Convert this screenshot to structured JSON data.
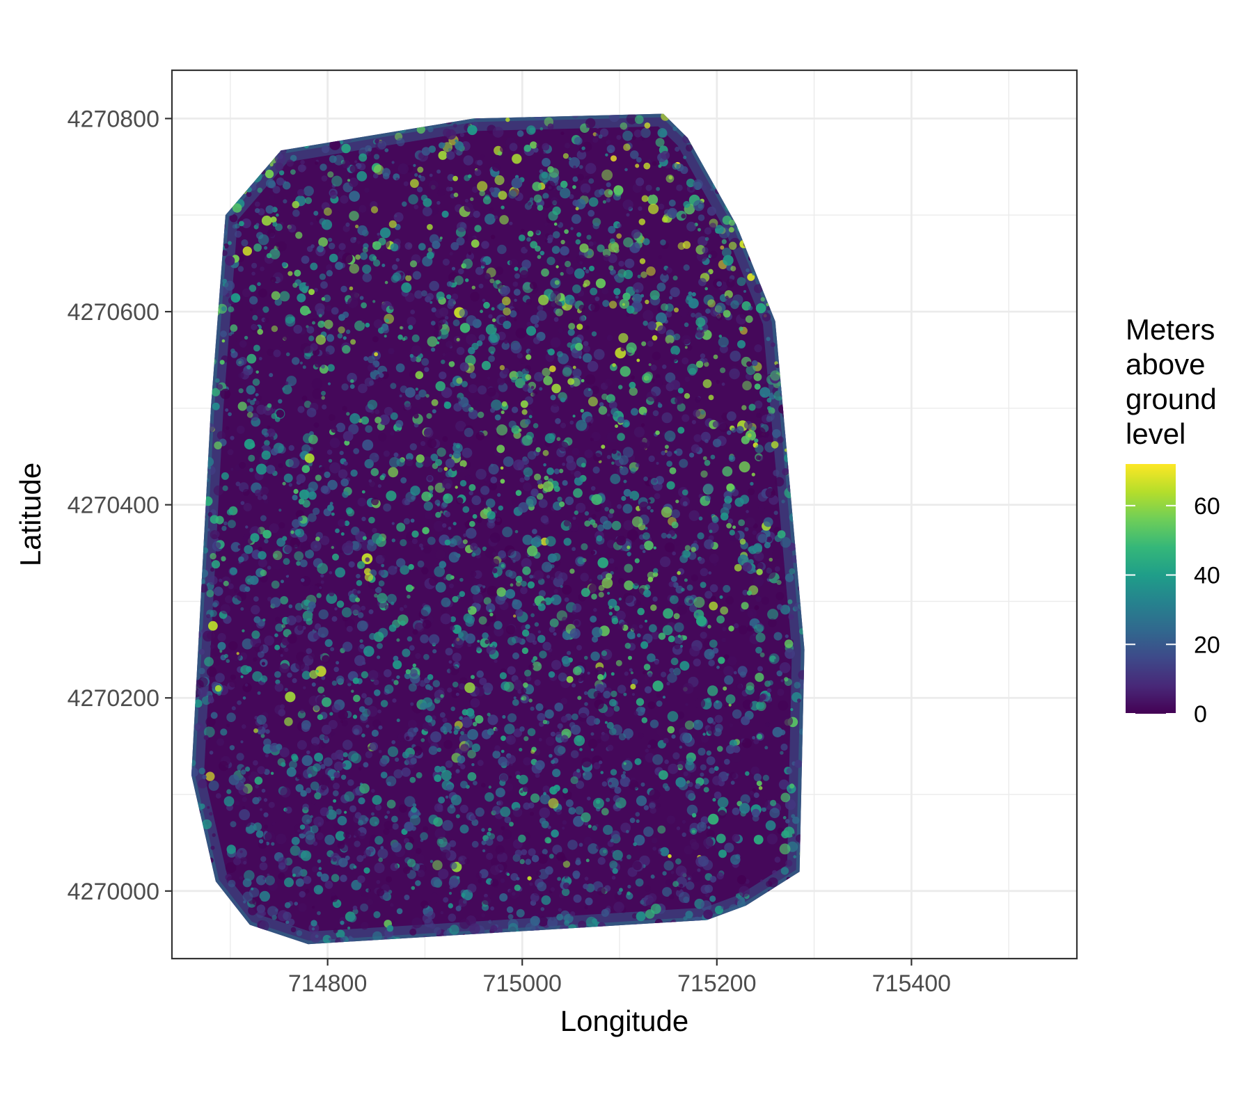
{
  "chart_data": {
    "type": "heatmap",
    "title": "",
    "xlabel": "Longitude",
    "ylabel": "Latitude",
    "xlim": [
      714640,
      715570
    ],
    "ylim": [
      4269930,
      4270850
    ],
    "x_ticks": [
      714800,
      715000,
      715200,
      715400
    ],
    "y_ticks": [
      4270000,
      4270200,
      4270400,
      4270600,
      4270800
    ],
    "x_tick_labels": [
      "714800",
      "715000",
      "715200",
      "715400"
    ],
    "y_tick_labels": [
      "4270000",
      "4270200",
      "4270400",
      "4270600",
      "4270800"
    ],
    "grid": true,
    "panel_border": true,
    "value_range": [
      0,
      72
    ],
    "description_values": "Canopy height raster over the plot footprint; mostly 0–20 m with scattered tree crowns reaching 30–60 m, max about 70 m.",
    "footprint_polygon": [
      [
        714695,
        4270700
      ],
      [
        714752,
        4270767
      ],
      [
        714950,
        4270800
      ],
      [
        715145,
        4270805
      ],
      [
        715170,
        4270780
      ],
      [
        715220,
        4270690
      ],
      [
        715260,
        4270590
      ],
      [
        715290,
        4270250
      ],
      [
        715285,
        4270020
      ],
      [
        715230,
        4269985
      ],
      [
        715190,
        4269970
      ],
      [
        714780,
        4269945
      ],
      [
        714720,
        4269965
      ],
      [
        714685,
        4270010
      ],
      [
        714660,
        4270120
      ],
      [
        714680,
        4270500
      ]
    ],
    "legend": {
      "title_lines": [
        "Meters",
        "above",
        "ground",
        "level"
      ],
      "ticks": [
        0,
        20,
        40,
        60
      ],
      "tick_labels": [
        "0",
        "20",
        "40",
        "60"
      ],
      "colormap": "viridis",
      "placement": "right"
    }
  },
  "colors": {
    "panel_bg": "#ffffff",
    "grid": "#ebebeb",
    "border": "#333333",
    "tick_text": "#4d4d4d",
    "viridis": [
      "#440154",
      "#482878",
      "#3e4989",
      "#31688e",
      "#26828e",
      "#1f9e89",
      "#35b779",
      "#6ece58",
      "#b5de2b",
      "#fde725"
    ]
  }
}
